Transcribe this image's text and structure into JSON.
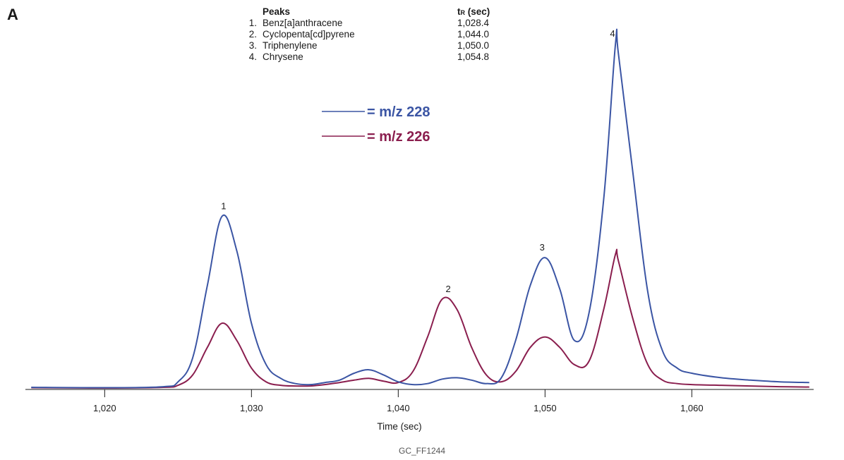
{
  "panel_label": "A",
  "peak_table": {
    "header_name": "Peaks",
    "header_time_main": "t",
    "header_time_sub": "R",
    "header_time_unit": " (sec)",
    "rows": [
      {
        "num": "1.",
        "name": "Benz[a]anthracene",
        "time": "1,028.4"
      },
      {
        "num": "2.",
        "name": "Cyclopenta[cd]pyrene",
        "time": "1,044.0"
      },
      {
        "num": "3.",
        "name": "Triphenylene",
        "time": "1,050.0"
      },
      {
        "num": "4.",
        "name": "Chrysene",
        "time": "1,054.8"
      }
    ]
  },
  "footer": "GC_FF1244",
  "chart_data": {
    "type": "line",
    "title": "",
    "xlabel": "Time (sec)",
    "ylabel": "",
    "xlim": [
      1014.6,
      1068.3
    ],
    "ylim": [
      0,
      1
    ],
    "grid": false,
    "x_ticks": [
      1020,
      1030,
      1040,
      1050,
      1060
    ],
    "x_tick_labels": [
      "1,020",
      "1,030",
      "1,040",
      "1,050",
      "1,060"
    ],
    "legend_placement": "top-center",
    "series": [
      {
        "name": "= m/z 228",
        "color": "#3b55a4",
        "x": [
          1015,
          1020,
          1024,
          1025,
          1026,
          1027,
          1028,
          1029,
          1030,
          1031,
          1032,
          1033,
          1034,
          1035,
          1036,
          1037,
          1038,
          1039,
          1040,
          1041,
          1042,
          1043,
          1044,
          1045,
          1046,
          1047,
          1048,
          1049,
          1050,
          1051,
          1052,
          1053,
          1054,
          1054.8,
          1055,
          1056,
          1057,
          1058,
          1059,
          1060,
          1062,
          1064,
          1066,
          1068
        ],
        "y": [
          0.004,
          0.003,
          0.006,
          0.02,
          0.09,
          0.3,
          0.5,
          0.4,
          0.19,
          0.07,
          0.03,
          0.015,
          0.012,
          0.018,
          0.025,
          0.045,
          0.055,
          0.04,
          0.02,
          0.012,
          0.015,
          0.028,
          0.032,
          0.025,
          0.015,
          0.03,
          0.14,
          0.3,
          0.38,
          0.29,
          0.14,
          0.22,
          0.55,
          1.0,
          0.97,
          0.62,
          0.28,
          0.11,
          0.06,
          0.045,
          0.032,
          0.025,
          0.02,
          0.018
        ]
      },
      {
        "name": "= m/z 226",
        "color": "#8a1e4e",
        "x": [
          1015,
          1020,
          1024,
          1025,
          1026,
          1027,
          1028,
          1029,
          1030,
          1031,
          1032,
          1033,
          1034,
          1035,
          1036,
          1037,
          1038,
          1039,
          1040,
          1041,
          1042,
          1043,
          1044,
          1045,
          1046,
          1047,
          1048,
          1049,
          1050,
          1051,
          1052,
          1053,
          1054,
          1054.8,
          1055,
          1056,
          1057,
          1058,
          1059,
          1060,
          1062,
          1064,
          1066,
          1068
        ],
        "y": [
          0.003,
          0.002,
          0.004,
          0.01,
          0.04,
          0.12,
          0.19,
          0.14,
          0.06,
          0.02,
          0.01,
          0.008,
          0.008,
          0.012,
          0.018,
          0.025,
          0.03,
          0.022,
          0.018,
          0.05,
          0.15,
          0.26,
          0.23,
          0.12,
          0.04,
          0.02,
          0.05,
          0.12,
          0.15,
          0.12,
          0.07,
          0.08,
          0.23,
          0.39,
          0.37,
          0.2,
          0.07,
          0.025,
          0.015,
          0.012,
          0.01,
          0.008,
          0.006,
          0.005
        ]
      }
    ],
    "annotations": [
      {
        "label": "1",
        "x": 1028.1,
        "y": 0.5
      },
      {
        "label": "2",
        "x": 1043.4,
        "y": 0.26
      },
      {
        "label": "3",
        "x": 1049.8,
        "y": 0.38
      },
      {
        "label": "4",
        "x": 1054.6,
        "y": 1.0
      }
    ]
  }
}
